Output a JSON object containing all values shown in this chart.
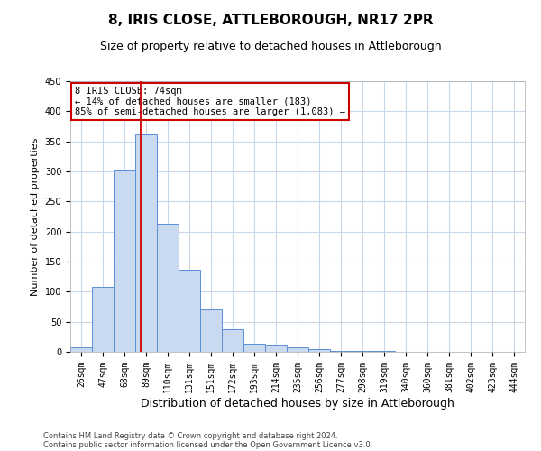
{
  "title": "8, IRIS CLOSE, ATTLEBOROUGH, NR17 2PR",
  "subtitle": "Size of property relative to detached houses in Attleborough",
  "xlabel": "Distribution of detached houses by size in Attleborough",
  "ylabel": "Number of detached properties",
  "bin_labels": [
    "26sqm",
    "47sqm",
    "68sqm",
    "89sqm",
    "110sqm",
    "131sqm",
    "151sqm",
    "172sqm",
    "193sqm",
    "214sqm",
    "235sqm",
    "256sqm",
    "277sqm",
    "298sqm",
    "319sqm",
    "340sqm",
    "360sqm",
    "381sqm",
    "402sqm",
    "423sqm",
    "444sqm"
  ],
  "bar_heights": [
    8,
    108,
    302,
    362,
    213,
    136,
    70,
    37,
    13,
    10,
    8,
    5,
    2,
    1,
    1,
    0,
    0,
    0,
    0,
    0,
    0
  ],
  "bar_color": "#c9d9f0",
  "bar_edgecolor": "#5b8dd9",
  "vline_x": 2.75,
  "vline_color": "#cc0000",
  "annotation_text": "8 IRIS CLOSE: 74sqm\n← 14% of detached houses are smaller (183)\n85% of semi-detached houses are larger (1,083) →",
  "annotation_box_color": "#cc0000",
  "ylim": [
    0,
    450
  ],
  "yticks": [
    0,
    50,
    100,
    150,
    200,
    250,
    300,
    350,
    400,
    450
  ],
  "footer_line1": "Contains HM Land Registry data © Crown copyright and database right 2024.",
  "footer_line2": "Contains public sector information licensed under the Open Government Licence v3.0.",
  "bg_color": "#ffffff",
  "grid_color": "#c8d8e8",
  "title_fontsize": 11,
  "subtitle_fontsize": 9,
  "tick_fontsize": 7,
  "ylabel_fontsize": 8,
  "xlabel_fontsize": 9,
  "annotation_fontsize": 7.5,
  "footer_fontsize": 6
}
